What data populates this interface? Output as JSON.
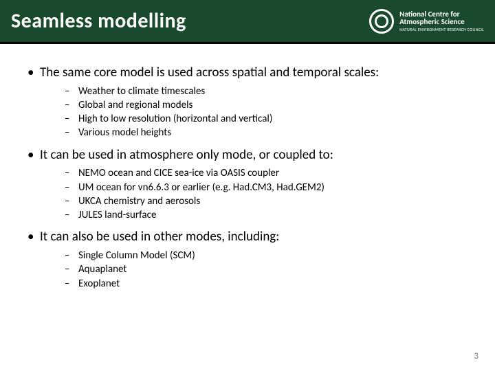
{
  "header": {
    "title": "Seamless modelling",
    "logo_main_line1": "National Centre for",
    "logo_main_line2": "Atmospheric Science",
    "logo_sub": "NATURAL ENVIRONMENT RESEARCH COUNCIL",
    "bg_color": "#1a4a2e",
    "border_color": "#000000"
  },
  "content": {
    "sections": [
      {
        "main": "The same core model is used across spatial and temporal scales:",
        "subs": [
          "Weather to climate timescales",
          "Global and regional models",
          "High to low resolution (horizontal and vertical)",
          "Various model heights"
        ]
      },
      {
        "main": "It can be used in atmosphere only mode, or coupled to:",
        "subs": [
          "NEMO ocean and CICE sea-ice via OASIS coupler",
          "UM ocean for vn6.6.3 or earlier (e.g. Had.CM3, Had.GEM2)",
          "UKCA chemistry and aerosols",
          "JULES  land-surface"
        ]
      },
      {
        "main": "It can also be used in other modes, including:",
        "subs": [
          "Single Column Model (SCM)",
          "Aquaplanet",
          "Exoplanet"
        ]
      }
    ]
  },
  "page_number": "3",
  "style": {
    "main_fontsize": 19,
    "sub_fontsize": 15,
    "page_num_color": "#808080"
  }
}
